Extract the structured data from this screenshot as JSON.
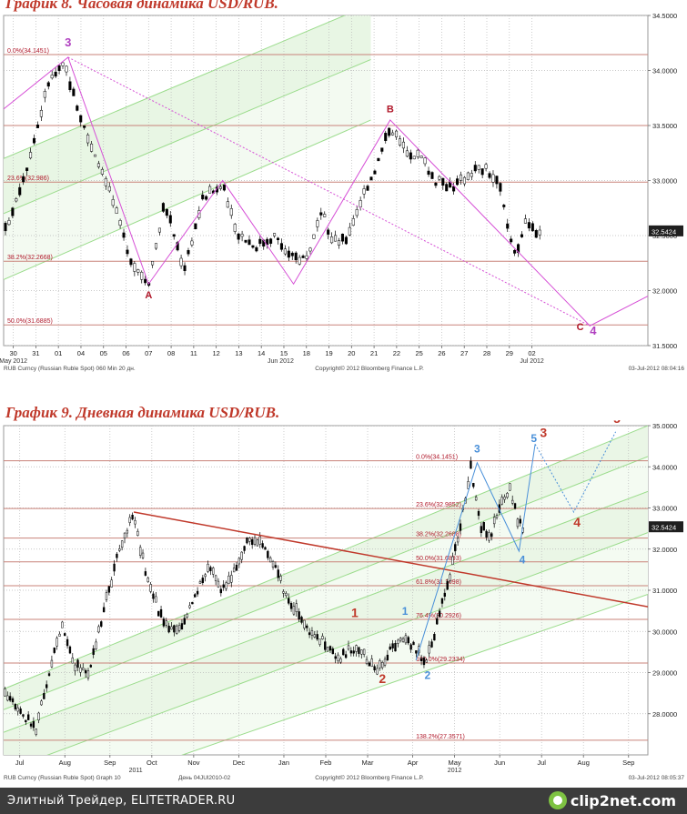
{
  "chart_data": [
    {
      "type": "candlestick",
      "title": "График 8.   Часовая динамика USD/RUB.",
      "ylim": [
        31.5,
        34.5
      ],
      "x_range": [
        0,
        100
      ],
      "grid": true,
      "y_ticks": [
        {
          "value": 34.5,
          "label": "34.5000"
        },
        {
          "value": 34.0,
          "label": "34.0000"
        },
        {
          "value": 33.5,
          "label": "33.5000"
        },
        {
          "value": 33.0,
          "label": "33.0000"
        },
        {
          "value": 32.5,
          "label": "32.5000"
        },
        {
          "value": 32.0,
          "label": "32.0000"
        },
        {
          "value": 31.5,
          "label": "31.5000"
        }
      ],
      "x_ticks": [
        {
          "x": 1.5,
          "label": "30"
        },
        {
          "x": 5,
          "label": "31"
        },
        {
          "x": 8.5,
          "label": "01"
        },
        {
          "x": 12,
          "label": "04"
        },
        {
          "x": 15.5,
          "label": "05"
        },
        {
          "x": 19,
          "label": "06"
        },
        {
          "x": 22.5,
          "label": "07"
        },
        {
          "x": 26,
          "label": "08"
        },
        {
          "x": 29.5,
          "label": "11"
        },
        {
          "x": 33,
          "label": "12"
        },
        {
          "x": 36.5,
          "label": "13"
        },
        {
          "x": 40,
          "label": "14"
        },
        {
          "x": 43.5,
          "label": "15"
        },
        {
          "x": 47,
          "label": "18"
        },
        {
          "x": 50.5,
          "label": "19"
        },
        {
          "x": 54,
          "label": "20"
        },
        {
          "x": 57.5,
          "label": "21"
        },
        {
          "x": 61,
          "label": "22"
        },
        {
          "x": 64.5,
          "label": "25"
        },
        {
          "x": 68,
          "label": "26"
        },
        {
          "x": 71.5,
          "label": "27"
        },
        {
          "x": 75,
          "label": "28"
        },
        {
          "x": 78.5,
          "label": "29"
        },
        {
          "x": 82,
          "label": "02"
        }
      ],
      "x_group_labels": [
        {
          "x": 1.5,
          "label": "May 2012"
        },
        {
          "x": 43,
          "label": "Jun 2012"
        },
        {
          "x": 82,
          "label": "Jul 2012"
        }
      ],
      "last_price": {
        "value": 32.5424,
        "label": "32.5424"
      },
      "fib_levels": [
        {
          "value": 34.1451,
          "label": "0.0%(34.1451)"
        },
        {
          "value": 33.5,
          "label": ""
        },
        {
          "value": 32.986,
          "label": "23.6%(32.986)"
        },
        {
          "value": 32.2668,
          "label": "38.2%(32.2668)"
        },
        {
          "value": 31.6885,
          "label": "50.0%(31.6885)"
        }
      ],
      "path_anchors": [
        {
          "x": 0,
          "y": 32.5
        },
        {
          "x": 4,
          "y": 33.2
        },
        {
          "x": 7,
          "y": 33.9
        },
        {
          "x": 9.5,
          "y": 34.05
        },
        {
          "x": 11,
          "y": 33.75
        },
        {
          "x": 13,
          "y": 33.4
        },
        {
          "x": 16,
          "y": 33.0
        },
        {
          "x": 18,
          "y": 32.6
        },
        {
          "x": 20,
          "y": 32.25
        },
        {
          "x": 22.5,
          "y": 32.08
        },
        {
          "x": 25,
          "y": 32.8
        },
        {
          "x": 27,
          "y": 32.4
        },
        {
          "x": 28,
          "y": 32.2
        },
        {
          "x": 31,
          "y": 32.85
        },
        {
          "x": 34,
          "y": 32.95
        },
        {
          "x": 36,
          "y": 32.55
        },
        {
          "x": 39,
          "y": 32.4
        },
        {
          "x": 42,
          "y": 32.5
        },
        {
          "x": 44.5,
          "y": 32.3
        },
        {
          "x": 47,
          "y": 32.3
        },
        {
          "x": 49.5,
          "y": 32.7
        },
        {
          "x": 51,
          "y": 32.45
        },
        {
          "x": 53,
          "y": 32.45
        },
        {
          "x": 56,
          "y": 32.9
        },
        {
          "x": 58,
          "y": 33.15
        },
        {
          "x": 60,
          "y": 33.5
        },
        {
          "x": 62,
          "y": 33.3
        },
        {
          "x": 65,
          "y": 33.2
        },
        {
          "x": 67,
          "y": 33.0
        },
        {
          "x": 70,
          "y": 32.95
        },
        {
          "x": 73,
          "y": 33.1
        },
        {
          "x": 75,
          "y": 33.1
        },
        {
          "x": 77,
          "y": 32.95
        },
        {
          "x": 78.5,
          "y": 32.5
        },
        {
          "x": 79.5,
          "y": 32.35
        },
        {
          "x": 81,
          "y": 32.6
        },
        {
          "x": 82.5,
          "y": 32.55
        },
        {
          "x": 83.5,
          "y": 32.5424
        }
      ],
      "channel": {
        "upper": [
          [
            0,
            33.2
          ],
          [
            57,
            34.6
          ]
        ],
        "lower": [
          [
            0,
            32.7
          ],
          [
            57,
            34.1
          ]
        ],
        "extra_lower": [
          [
            0,
            32.1
          ],
          [
            57,
            33.55
          ]
        ],
        "fill": "#e8f6e4",
        "line": "#9bdc8c"
      },
      "overlay_lines": [
        {
          "points": [
            [
              0,
              33.65
            ],
            [
              10,
              34.12
            ],
            [
              22.5,
              32.06
            ],
            [
              34,
              33.0
            ],
            [
              45,
              32.06
            ],
            [
              60,
              33.55
            ],
            [
              91,
              31.68
            ],
            [
              100,
              31.95
            ]
          ],
          "color": "#d64fd6",
          "style": "solid"
        },
        {
          "points": [
            [
              10,
              34.12
            ],
            [
              91,
              31.68
            ]
          ],
          "color": "#d64fd6",
          "style": "dotted"
        }
      ],
      "wave_labels": [
        {
          "x": 10,
          "y": 34.22,
          "label": "3",
          "color": "#b040c0",
          "size": 13
        },
        {
          "x": 22.5,
          "y": 31.93,
          "label": "A",
          "color": "#b0182a",
          "size": 11
        },
        {
          "x": 60,
          "y": 33.62,
          "label": "B",
          "color": "#b0182a",
          "size": 11
        },
        {
          "x": 89.5,
          "y": 31.64,
          "label": "C",
          "color": "#b0182a",
          "size": 11
        },
        {
          "x": 91.5,
          "y": 31.6,
          "label": "4",
          "color": "#b040c0",
          "size": 13
        }
      ],
      "source_left": "RUB Curncy (Russian Ruble Spot) 060 Min 20 дн.",
      "source_center": "Copyright© 2012 Bloomberg Finance L.P.",
      "source_right": "03-Jul-2012 08:04:16"
    },
    {
      "type": "candlestick",
      "title": "График 9.   Дневная динамика USD/RUB.",
      "ylim": [
        27.0,
        35.0
      ],
      "x_range": [
        0,
        100
      ],
      "grid": true,
      "y_ticks": [
        {
          "value": 35.0,
          "label": "35.0000"
        },
        {
          "value": 34.0,
          "label": "34.0000"
        },
        {
          "value": 33.0,
          "label": "33.0000"
        },
        {
          "value": 32.0,
          "label": "32.0000"
        },
        {
          "value": 31.0,
          "label": "31.0000"
        },
        {
          "value": 30.0,
          "label": "30.0000"
        },
        {
          "value": 29.0,
          "label": "29.0000"
        },
        {
          "value": 28.0,
          "label": "28.0000"
        }
      ],
      "x_ticks": [
        {
          "x": 2.5,
          "label": "Jul"
        },
        {
          "x": 9.5,
          "label": "Aug"
        },
        {
          "x": 16.5,
          "label": "Sep"
        },
        {
          "x": 23,
          "label": "Oct"
        },
        {
          "x": 29.5,
          "label": "Nov"
        },
        {
          "x": 36.5,
          "label": "Dec"
        },
        {
          "x": 43.5,
          "label": "Jan"
        },
        {
          "x": 50,
          "label": "Feb"
        },
        {
          "x": 56.5,
          "label": "Mar"
        },
        {
          "x": 63.5,
          "label": "Apr"
        },
        {
          "x": 70,
          "label": "May"
        },
        {
          "x": 77,
          "label": "Jun"
        },
        {
          "x": 83.5,
          "label": "Jul"
        },
        {
          "x": 90,
          "label": "Aug"
        },
        {
          "x": 97,
          "label": "Sep"
        }
      ],
      "x_group_labels": [
        {
          "x": 20.5,
          "label": "2011"
        },
        {
          "x": 70,
          "label": "2012"
        }
      ],
      "last_price": {
        "value": 32.5424,
        "label": "32.5424"
      },
      "fib_levels": [
        {
          "value": 34.1451,
          "label": "0.0%(34.1451)"
        },
        {
          "value": 32.9852,
          "label": "23.6%(32.9852)"
        },
        {
          "value": 32.2688,
          "label": "38.2%(32.2688)"
        },
        {
          "value": 31.6893,
          "label": "50.0%(31.6893)"
        },
        {
          "value": 31.1098,
          "label": "61.8%(31.1098)"
        },
        {
          "value": 30.2926,
          "label": "76.4%(30.2926)"
        },
        {
          "value": 29.2334,
          "label": "100.0%(29.2334)"
        },
        {
          "value": 27.3571,
          "label": "138.2%(27.3571)"
        }
      ],
      "path_anchors": [
        {
          "x": 0,
          "y": 28.5
        },
        {
          "x": 3,
          "y": 28.0
        },
        {
          "x": 5,
          "y": 27.6
        },
        {
          "x": 7,
          "y": 29.0
        },
        {
          "x": 9,
          "y": 30.1
        },
        {
          "x": 11,
          "y": 29.2
        },
        {
          "x": 13,
          "y": 28.9
        },
        {
          "x": 16,
          "y": 30.8
        },
        {
          "x": 18,
          "y": 32.0
        },
        {
          "x": 20,
          "y": 32.85
        },
        {
          "x": 22,
          "y": 31.5
        },
        {
          "x": 24,
          "y": 30.5
        },
        {
          "x": 26,
          "y": 30.0
        },
        {
          "x": 28,
          "y": 30.2
        },
        {
          "x": 30,
          "y": 31.0
        },
        {
          "x": 32,
          "y": 31.6
        },
        {
          "x": 34,
          "y": 31.0
        },
        {
          "x": 36,
          "y": 31.5
        },
        {
          "x": 38,
          "y": 32.2
        },
        {
          "x": 40,
          "y": 32.2
        },
        {
          "x": 42,
          "y": 31.6
        },
        {
          "x": 44,
          "y": 30.8
        },
        {
          "x": 46,
          "y": 30.4
        },
        {
          "x": 48,
          "y": 29.9
        },
        {
          "x": 50,
          "y": 29.7
        },
        {
          "x": 52,
          "y": 29.3
        },
        {
          "x": 54,
          "y": 29.6
        },
        {
          "x": 56,
          "y": 29.4
        },
        {
          "x": 58,
          "y": 29.1
        },
        {
          "x": 60,
          "y": 29.5
        },
        {
          "x": 62,
          "y": 29.8
        },
        {
          "x": 64,
          "y": 29.6
        },
        {
          "x": 65.5,
          "y": 29.2
        },
        {
          "x": 67,
          "y": 30.0
        },
        {
          "x": 69,
          "y": 31.2
        },
        {
          "x": 71,
          "y": 32.6
        },
        {
          "x": 72.5,
          "y": 34.0
        },
        {
          "x": 74,
          "y": 32.6
        },
        {
          "x": 75.5,
          "y": 32.3
        },
        {
          "x": 77,
          "y": 33.0
        },
        {
          "x": 78.5,
          "y": 33.5
        },
        {
          "x": 80,
          "y": 32.6
        },
        {
          "x": 80.8,
          "y": 32.5424
        }
      ],
      "channel": {
        "lines": [
          [
            [
              0,
              28.6
            ],
            [
              100,
              35.0
            ]
          ],
          [
            [
              0,
              28.1
            ],
            [
              100,
              34.25
            ]
          ],
          [
            [
              0,
              27.55
            ],
            [
              100,
              33.4
            ]
          ],
          [
            [
              0,
              26.6
            ],
            [
              100,
              32.4
            ]
          ],
          [
            [
              0,
              25.5
            ],
            [
              100,
              30.9
            ]
          ]
        ],
        "fill": "#eaf6e6",
        "line": "#9bdc8c"
      },
      "overlay_lines": [
        {
          "points": [
            [
              20.2,
              32.9
            ],
            [
              100,
              30.6
            ]
          ],
          "color": "#c0392b",
          "style": "solid",
          "width": 1.5
        },
        {
          "points": [
            [
              64,
              29.3
            ],
            [
              73.5,
              34.1
            ],
            [
              80,
              31.95
            ],
            [
              82.5,
              34.55
            ]
          ],
          "color": "#4a90d9",
          "style": "solid"
        },
        {
          "points": [
            [
              82.5,
              34.55
            ],
            [
              88.5,
              32.9
            ],
            [
              95,
              34.85
            ]
          ],
          "color": "#4a90d9",
          "style": "dotted"
        }
      ],
      "wave_labels": [
        {
          "x": 54.5,
          "y": 30.35,
          "label": "1",
          "color": "#c0392b",
          "size": 14
        },
        {
          "x": 58.8,
          "y": 28.75,
          "label": "2",
          "color": "#c0392b",
          "size": 14
        },
        {
          "x": 62.3,
          "y": 30.4,
          "label": "1",
          "color": "#4a90d9",
          "size": 12
        },
        {
          "x": 65.8,
          "y": 28.85,
          "label": "2",
          "color": "#4a90d9",
          "size": 12
        },
        {
          "x": 73.5,
          "y": 34.35,
          "label": "3",
          "color": "#4a90d9",
          "size": 12
        },
        {
          "x": 80.5,
          "y": 31.65,
          "label": "4",
          "color": "#4a90d9",
          "size": 12
        },
        {
          "x": 82.3,
          "y": 34.6,
          "label": "5",
          "color": "#4a90d9",
          "size": 12
        },
        {
          "x": 83.8,
          "y": 34.72,
          "label": "3",
          "color": "#c0392b",
          "size": 14
        },
        {
          "x": 89,
          "y": 32.55,
          "label": "4",
          "color": "#c0392b",
          "size": 14
        },
        {
          "x": 95.2,
          "y": 35.07,
          "label": "5",
          "color": "#c0392b",
          "size": 14
        }
      ],
      "source_left": "RUB Curncy (Russian Ruble Spot) Graph 10",
      "source_center_left": "День 04JUl2010-02",
      "source_center": "Copyright© 2012 Bloomberg Finance L.P.",
      "source_right": "03-Jul-2012 08:05:37"
    }
  ],
  "footer": {
    "text": "Элитный Трейдер, ELITETRADER.RU",
    "logo": "clip2net.com",
    "logo_icon": "clip2net-logo-icon"
  }
}
